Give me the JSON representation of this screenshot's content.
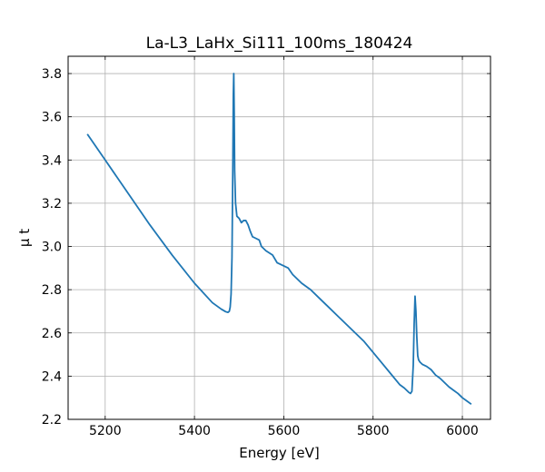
{
  "chart_data": {
    "type": "line",
    "title": "La-L3_LaHx_Si111_100ms_180424",
    "xlabel": "Energy [eV]",
    "ylabel": "μ t",
    "xlim": [
      5117,
      6063
    ],
    "ylim": [
      2.2,
      3.88
    ],
    "x_ticks": [
      5200,
      5400,
      5600,
      5800,
      6000
    ],
    "y_ticks": [
      2.2,
      2.4,
      2.6,
      2.8,
      3.0,
      3.2,
      3.4,
      3.6,
      3.8
    ],
    "x_tick_labels": [
      "5200",
      "5400",
      "5600",
      "5800",
      "6000"
    ],
    "y_tick_labels": [
      "2.2",
      "2.4",
      "2.6",
      "2.8",
      "3.0",
      "3.2",
      "3.4",
      "3.6",
      "3.8"
    ],
    "grid": true,
    "color": "#1f77b4",
    "series": [
      {
        "x": [
          5160,
          5200,
          5250,
          5300,
          5350,
          5400,
          5440,
          5460,
          5470,
          5475,
          5478,
          5480,
          5482,
          5484,
          5486,
          5487,
          5488,
          5489,
          5490,
          5492,
          5495,
          5500,
          5505,
          5510,
          5515,
          5520,
          5525,
          5530,
          5535,
          5545,
          5550,
          5560,
          5575,
          5585,
          5600,
          5610,
          5620,
          5640,
          5660,
          5680,
          5700,
          5720,
          5740,
          5760,
          5780,
          5800,
          5820,
          5840,
          5860,
          5870,
          5880,
          5884,
          5887,
          5890,
          5892,
          5894,
          5896,
          5898,
          5900,
          5902,
          5905,
          5910,
          5920,
          5930,
          5940,
          5950,
          5960,
          5970,
          5980,
          5990,
          6000,
          6010,
          6020
        ],
        "y": [
          3.52,
          3.4,
          3.25,
          3.1,
          2.96,
          2.83,
          2.74,
          2.71,
          2.698,
          2.695,
          2.7,
          2.72,
          2.78,
          2.95,
          3.4,
          3.7,
          3.8,
          3.62,
          3.35,
          3.2,
          3.14,
          3.13,
          3.11,
          3.12,
          3.12,
          3.1,
          3.07,
          3.045,
          3.04,
          3.03,
          3.0,
          2.98,
          2.96,
          2.925,
          2.91,
          2.9,
          2.87,
          2.83,
          2.8,
          2.76,
          2.72,
          2.68,
          2.64,
          2.6,
          2.56,
          2.51,
          2.46,
          2.41,
          2.36,
          2.345,
          2.325,
          2.32,
          2.33,
          2.45,
          2.64,
          2.77,
          2.7,
          2.58,
          2.495,
          2.475,
          2.465,
          2.455,
          2.445,
          2.43,
          2.405,
          2.39,
          2.37,
          2.35,
          2.335,
          2.32,
          2.3,
          2.285,
          2.27
        ]
      }
    ]
  }
}
